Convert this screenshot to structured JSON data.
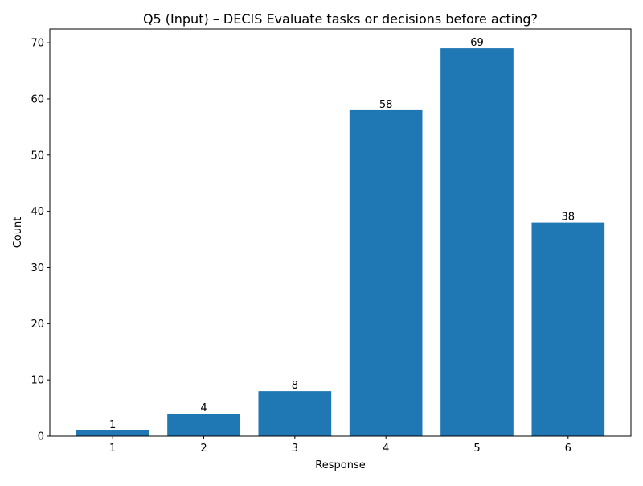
{
  "chart_data": {
    "type": "bar",
    "title": "Q5 (Input) – DECIS Evaluate tasks or decisions before acting?",
    "xlabel": "Response",
    "ylabel": "Count",
    "categories": [
      "1",
      "2",
      "3",
      "4",
      "5",
      "6"
    ],
    "values": [
      1,
      4,
      8,
      58,
      69,
      38
    ],
    "ylim": [
      0,
      72.45
    ],
    "yticks": [
      0,
      10,
      20,
      30,
      40,
      50,
      60,
      70
    ],
    "grid": false,
    "legend": "none",
    "bar_color": "#1f77b4",
    "data_labels": true
  }
}
